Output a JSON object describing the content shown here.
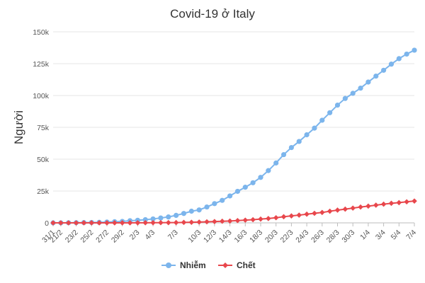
{
  "chart_data": {
    "type": "line",
    "title": "Covid-19 ở Italy",
    "xlabel": "",
    "ylabel": "Người",
    "ylim": [
      0,
      150000
    ],
    "yticks": [
      0,
      25000,
      50000,
      75000,
      100000,
      125000,
      150000
    ],
    "ytick_labels": [
      "0",
      "25k",
      "50k",
      "75k",
      "100k",
      "125k",
      "150k"
    ],
    "grid": true,
    "legend_position": "bottom",
    "x": [
      "31/1",
      "21/2",
      "22/2",
      "23/2",
      "24/2",
      "25/2",
      "26/2",
      "27/2",
      "28/2",
      "29/2",
      "1/3",
      "2/3",
      "3/3",
      "4/3",
      "5/3",
      "6/3",
      "7/3",
      "8/3",
      "9/3",
      "10/3",
      "11/3",
      "12/3",
      "13/3",
      "14/3",
      "15/3",
      "16/3",
      "17/3",
      "18/3",
      "19/3",
      "20/3",
      "21/3",
      "22/3",
      "23/3",
      "24/3",
      "25/3",
      "26/3",
      "27/3",
      "28/3",
      "29/3",
      "30/3",
      "31/3",
      "1/4",
      "2/4",
      "3/4",
      "4/4",
      "5/4",
      "6/4",
      "7/4"
    ],
    "x_tick_labels": [
      "31/1",
      "21/2",
      "23/2",
      "25/2",
      "27/2",
      "29/2",
      "2/3",
      "4/3",
      "7/3",
      "10/3",
      "12/3",
      "14/3",
      "16/3",
      "18/3",
      "20/3",
      "22/3",
      "24/3",
      "26/3",
      "28/3",
      "30/3",
      "1/4",
      "3/4",
      "5/4",
      "7/4"
    ],
    "series": [
      {
        "name": "Nhiễm",
        "color": "#7cb5ec",
        "marker": "circle",
        "values": [
          3,
          20,
          79,
          150,
          229,
          322,
          400,
          650,
          888,
          1128,
          1694,
          2036,
          2502,
          3089,
          3858,
          4636,
          5883,
          7375,
          9172,
          10149,
          12462,
          15113,
          17660,
          21157,
          24747,
          27980,
          31506,
          35713,
          41035,
          47021,
          53578,
          59138,
          63927,
          69176,
          74386,
          80589,
          86498,
          92472,
          97689,
          101739,
          105792,
          110574,
          115242,
          119827,
          124632,
          128948,
          132547,
          135586
        ]
      },
      {
        "name": "Chết",
        "color": "#e8474c",
        "marker": "diamond",
        "values": [
          0,
          1,
          2,
          3,
          7,
          10,
          12,
          17,
          21,
          29,
          34,
          52,
          79,
          107,
          148,
          197,
          233,
          366,
          463,
          631,
          827,
          1016,
          1266,
          1441,
          1809,
          2158,
          2503,
          2978,
          3405,
          4032,
          4825,
          5476,
          6077,
          6820,
          7503,
          8165,
          9134,
          10023,
          10779,
          11591,
          12428,
          13155,
          13915,
          14681,
          15362,
          15887,
          16523,
          17127
        ]
      }
    ]
  }
}
